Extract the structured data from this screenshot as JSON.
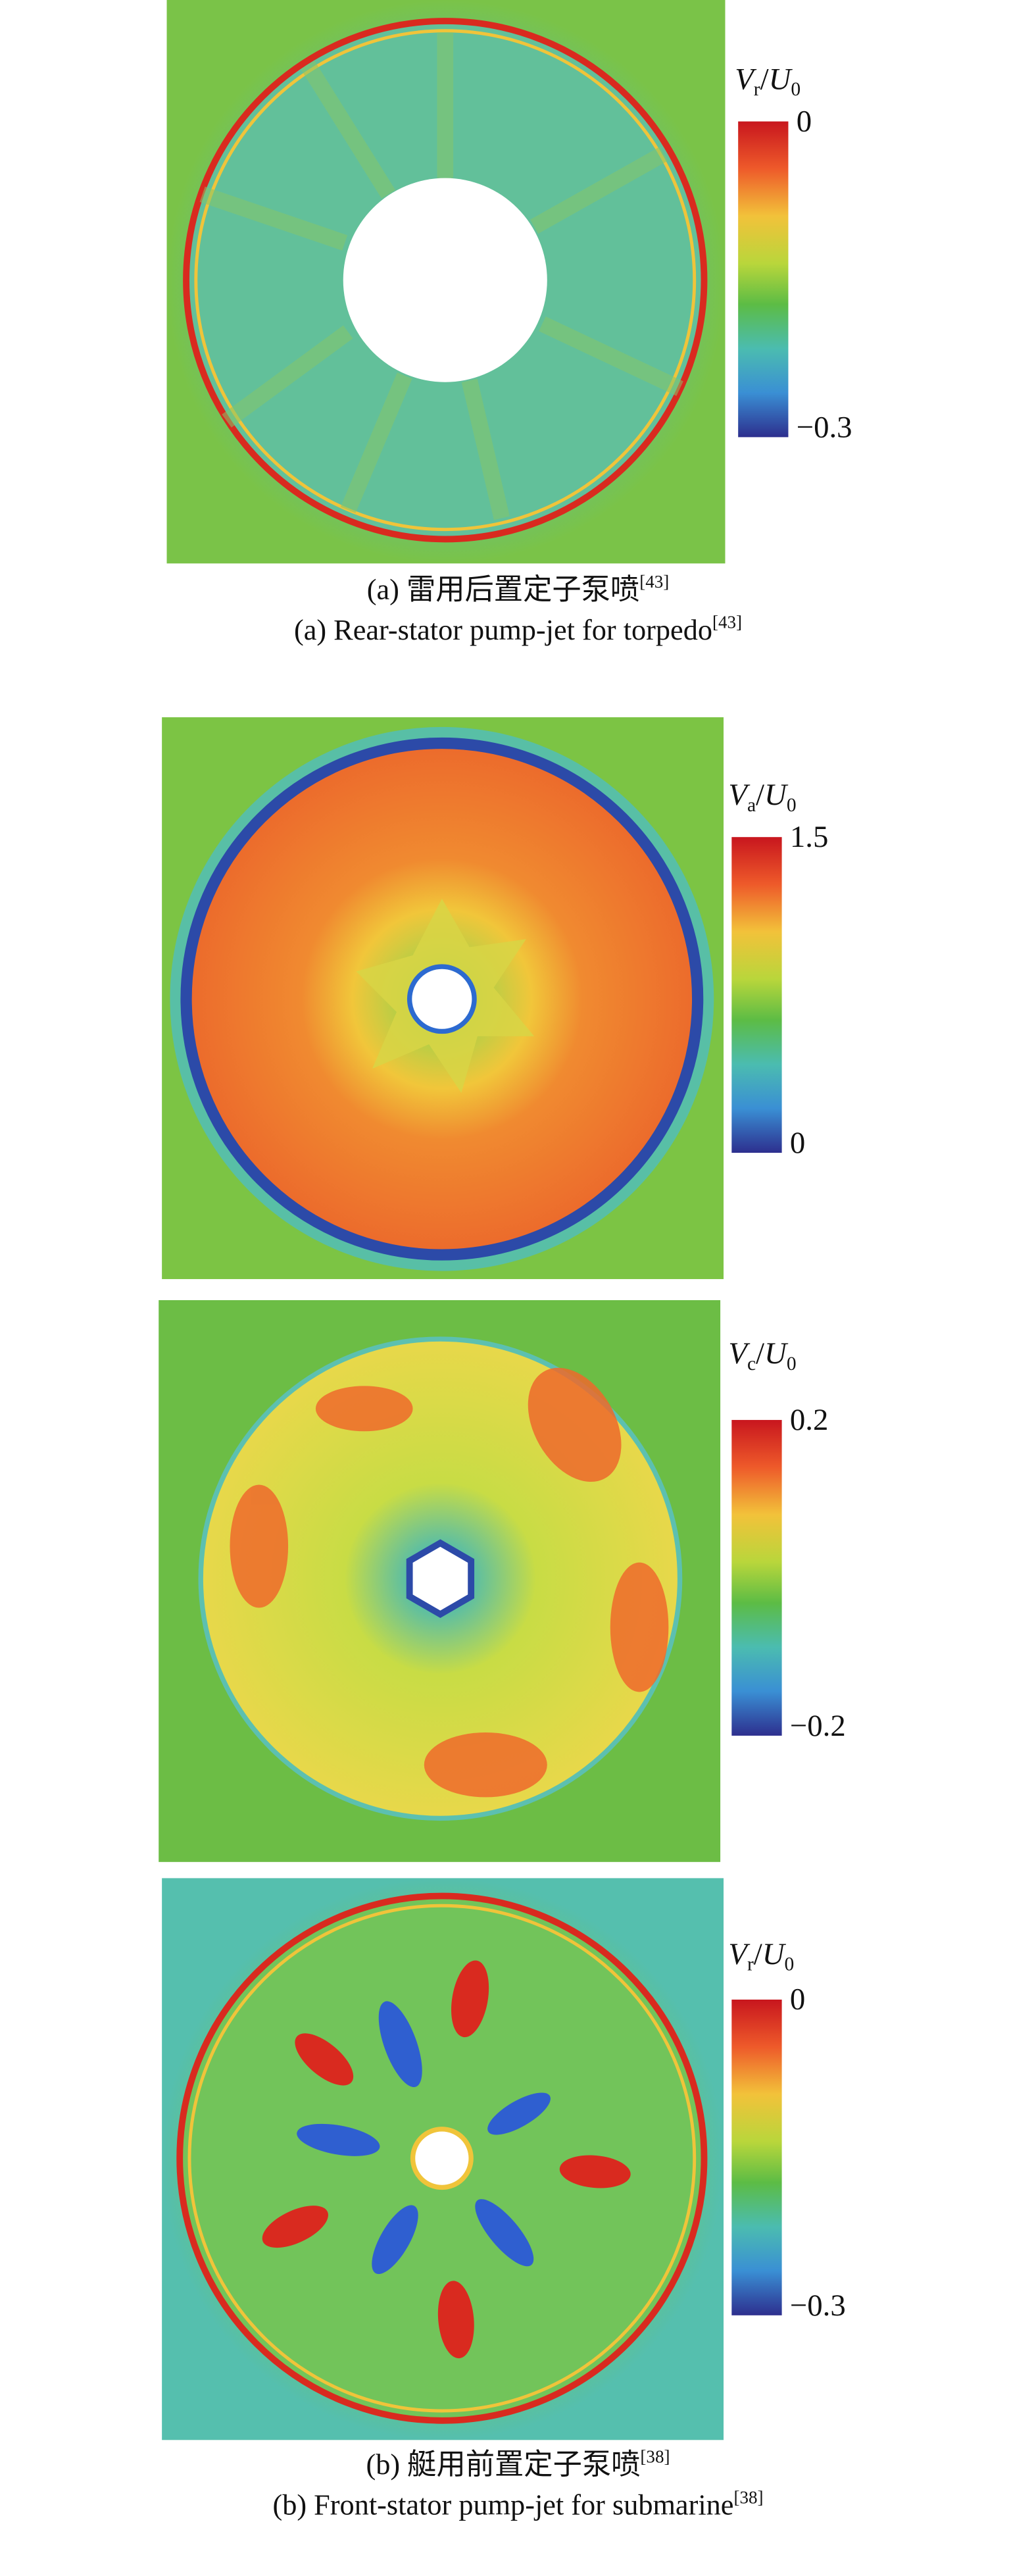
{
  "panels": [
    {
      "label": [
        "V",
        "r",
        "/",
        "U",
        "0"
      ],
      "ticks": [
        "0",
        "−0.3"
      ]
    },
    {
      "label": [
        "V",
        "a",
        "/",
        "U",
        "0"
      ],
      "ticks": [
        "1.5",
        "0"
      ]
    },
    {
      "label": [
        "V",
        "c",
        "/",
        "U",
        "0"
      ],
      "ticks": [
        "0.2",
        "−0.2"
      ]
    },
    {
      "label": [
        "V",
        "r",
        "/",
        "U",
        "0"
      ],
      "ticks": [
        "0",
        "−0.3"
      ]
    }
  ],
  "captions": [
    {
      "text": "(a) 雷用后置定子泵喷",
      "ref": "[43]"
    },
    {
      "text": "(a) Rear-stator pump-jet for torpedo",
      "ref": "[43]"
    },
    {
      "text": "(b) 艇用前置定子泵喷",
      "ref": "[38]"
    },
    {
      "text": "(b) Front-stator pump-jet for submarine",
      "ref": "[38]"
    }
  ]
}
